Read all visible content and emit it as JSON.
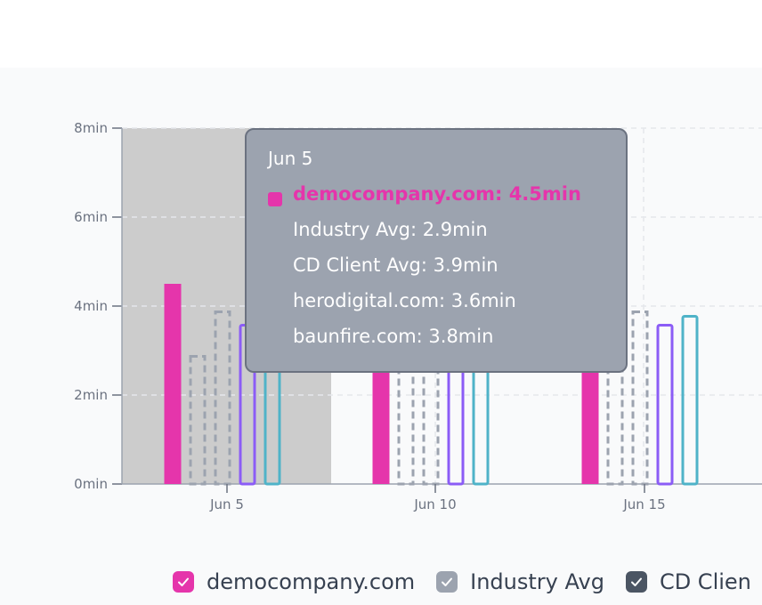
{
  "chart_data": {
    "type": "bar",
    "x_ticks": [
      "Jun 5",
      "Jun 10",
      "Jun 15"
    ],
    "y_ticks": [
      "0min",
      "2min",
      "4min",
      "6min",
      "8min"
    ],
    "ylim": [
      0,
      8
    ],
    "grid": true,
    "highlighted_group": "Jun 5",
    "series": [
      {
        "name": "democompany.com",
        "color": "#e535ab",
        "style": "filled",
        "values": [
          4.5,
          4.5,
          4.5
        ]
      },
      {
        "name": "Industry Avg",
        "color": "#9ca3af",
        "style": "dashed",
        "values": [
          2.9,
          2.9,
          2.9
        ]
      },
      {
        "name": "CD Client Avg",
        "color": "#9ca3af",
        "style": "dashed",
        "values": [
          3.9,
          3.9,
          3.9
        ]
      },
      {
        "name": "herodigital.com",
        "color": "#8b5cf6",
        "style": "outline",
        "values": [
          3.6,
          3.6,
          3.6
        ]
      },
      {
        "name": "baunfire.com",
        "color": "#4fb3c8",
        "style": "outline",
        "values": [
          3.8,
          3.8,
          3.8
        ]
      }
    ]
  },
  "tooltip": {
    "title": "Jun 5",
    "rows": [
      "democompany.com: 4.5min",
      "Industry Avg: 2.9min",
      "CD Client Avg: 3.9min",
      "herodigital.com: 3.6min",
      "baunfire.com: 3.8min"
    ]
  },
  "legend": [
    {
      "label": "democompany.com",
      "color": "#e535ab",
      "checked": true
    },
    {
      "label": "Industry Avg",
      "color": "#9ca3af",
      "checked": true
    },
    {
      "label": "CD Clien",
      "color": "#4b5563",
      "checked": true
    }
  ]
}
